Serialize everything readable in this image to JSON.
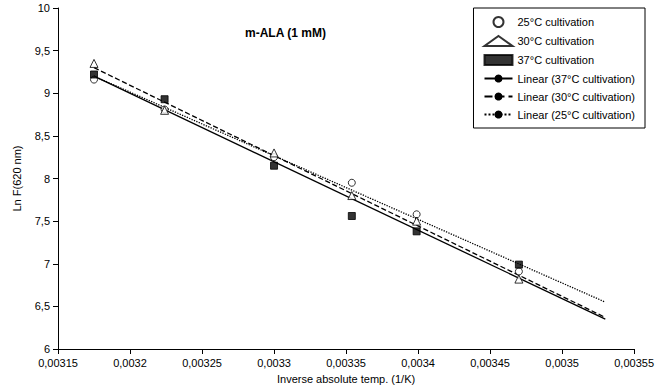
{
  "chart_data": {
    "type": "scatter",
    "title": "m-ALA (1 mM)",
    "x_label": "Inverse absolute temp. (1/K)",
    "y_label": "Ln F(620 nm)",
    "xlim": [
      0.00315,
      0.00355
    ],
    "xticks": [
      {
        "value": 0.00315,
        "label": "0,00315"
      },
      {
        "value": 0.0032,
        "label": "0,0032"
      },
      {
        "value": 0.00325,
        "label": "0,00325"
      },
      {
        "value": 0.0033,
        "label": "0,0033"
      },
      {
        "value": 0.00335,
        "label": "0,00335"
      },
      {
        "value": 0.0034,
        "label": "0,0034"
      },
      {
        "value": 0.00345,
        "label": "0,00345"
      },
      {
        "value": 0.0035,
        "label": "0,0035"
      },
      {
        "value": 0.00355,
        "label": "0,00355"
      }
    ],
    "ylim": [
      6,
      10
    ],
    "yticks": [
      6,
      {
        "value": 6.5,
        "label": "6,5"
      },
      7,
      {
        "value": 7.5,
        "label": "7,5"
      },
      8,
      {
        "value": 8.5,
        "label": "8,5"
      },
      9,
      {
        "value": 9.5,
        "label": "9,5"
      },
      10
    ],
    "grid": false,
    "legend": "top-right",
    "series": [
      {
        "name": "25°C cultivation",
        "type": "scatter",
        "marker": "circle_open",
        "color": "#000000",
        "x": [
          0.003175,
          0.003224,
          0.0033,
          0.003354,
          0.003399,
          0.00347
        ],
        "values": [
          9.16,
          8.81,
          8.25,
          7.95,
          7.58,
          6.91
        ]
      },
      {
        "name": "30°C cultivation",
        "type": "scatter",
        "marker": "triangle_open",
        "color": "#000000",
        "x": [
          0.003175,
          0.003224,
          0.0033,
          0.003354,
          0.003399,
          0.00347
        ],
        "values": [
          9.35,
          8.8,
          8.3,
          7.8,
          7.5,
          6.82
        ]
      },
      {
        "name": "37°C cultivation",
        "type": "scatter",
        "marker": "square",
        "color": "#000000",
        "x": [
          0.003175,
          0.003224,
          0.0033,
          0.003354,
          0.003399,
          0.00347
        ],
        "values": [
          9.22,
          8.93,
          8.15,
          7.56,
          7.38,
          6.99
        ]
      },
      {
        "name": "Linear (37°C cultivation)",
        "type": "line",
        "line_style": "solid",
        "color": "#000000",
        "x": [
          0.003175,
          0.00353
        ],
        "values": [
          9.2,
          6.35
        ]
      },
      {
        "name": "Linear (30°C cultivation)",
        "type": "line",
        "line_style": "dashed",
        "color": "#000000",
        "x": [
          0.003175,
          0.00353
        ],
        "values": [
          9.3,
          6.37
        ]
      },
      {
        "name": "Linear (25°C cultivation)",
        "type": "line",
        "line_style": "dotted",
        "color": "#000000",
        "x": [
          0.003175,
          0.00353
        ],
        "values": [
          9.2,
          6.55
        ]
      }
    ]
  }
}
